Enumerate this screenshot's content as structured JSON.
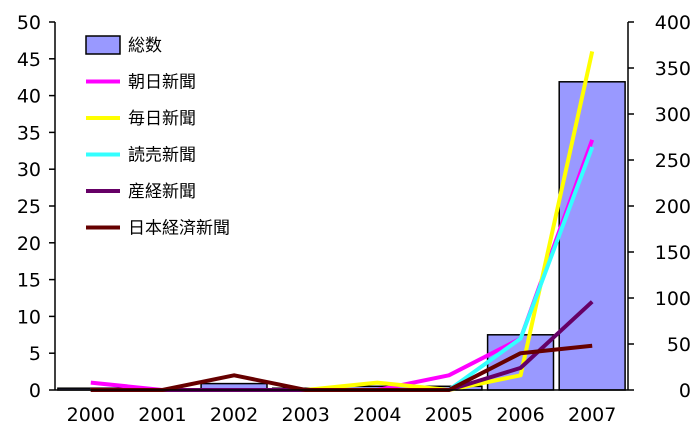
{
  "chart_data": {
    "type": "bar+line",
    "categories": [
      "2000",
      "2001",
      "2002",
      "2003",
      "2004",
      "2005",
      "2006",
      "2007"
    ],
    "left_axis": {
      "ylim": [
        0,
        50
      ],
      "ticks": [
        "0",
        "5",
        "10",
        "15",
        "20",
        "25",
        "30",
        "35",
        "40",
        "45",
        "50"
      ]
    },
    "right_axis": {
      "ylim": [
        0,
        400
      ],
      "ticks": [
        "0",
        "50",
        "100",
        "150",
        "200",
        "250",
        "300",
        "350",
        "400"
      ]
    },
    "bar_series": {
      "name": "総数",
      "axis": "right",
      "color": "#9999ff",
      "values": [
        2,
        0,
        7,
        2,
        4,
        4,
        60,
        335
      ]
    },
    "line_series": [
      {
        "name": "朝日新聞",
        "color": "#ff00ff",
        "values": [
          1,
          0,
          0,
          0,
          0,
          2,
          7,
          34
        ]
      },
      {
        "name": "毎日新聞",
        "color": "#ffff00",
        "values": [
          0,
          0,
          0,
          0,
          1,
          0,
          2,
          46
        ]
      },
      {
        "name": "読売新聞",
        "color": "#33ffff",
        "values": [
          0,
          0,
          0,
          0,
          0,
          0,
          7,
          33
        ]
      },
      {
        "name": "産経新聞",
        "color": "#660066",
        "values": [
          0,
          0,
          0,
          0,
          0,
          0,
          3,
          12
        ]
      },
      {
        "name": "日本経済新聞",
        "color": "#660000",
        "values": [
          0,
          0,
          2,
          0,
          0,
          0,
          5,
          6
        ]
      }
    ],
    "legend_position": "top-left",
    "grid": false
  }
}
